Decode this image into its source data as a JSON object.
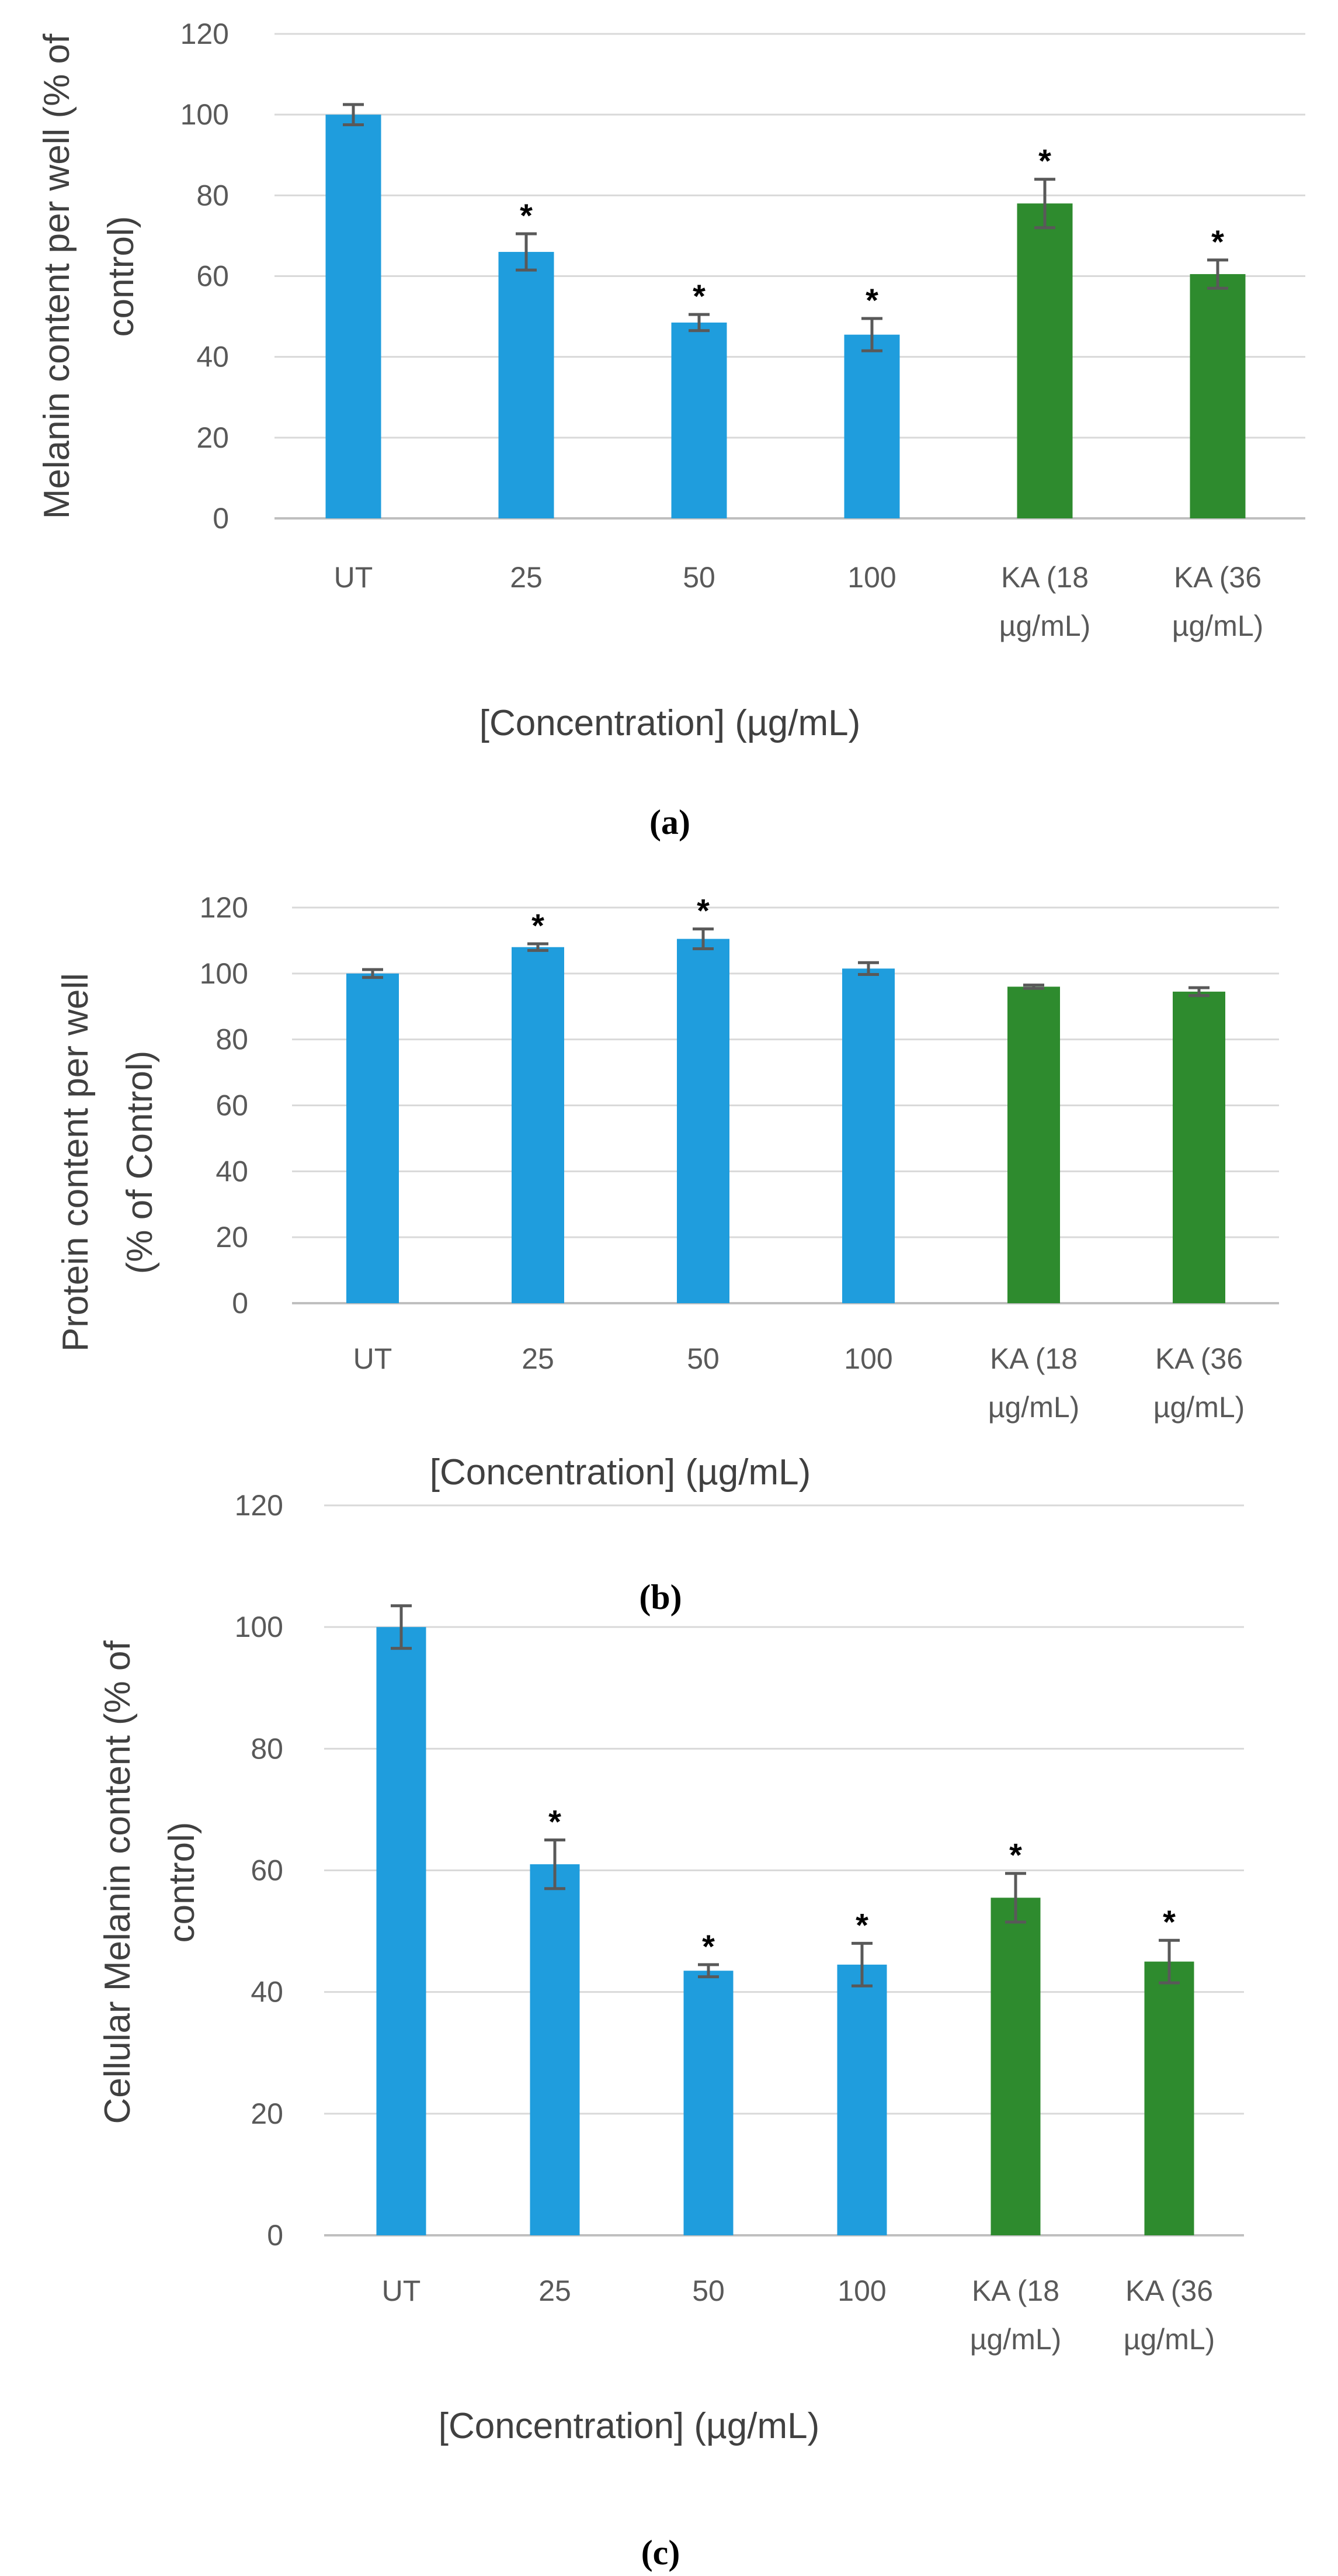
{
  "chart_data": [
    {
      "type": "bar",
      "panel": "(a)",
      "caption": "(a)",
      "title": "",
      "ylabel_lines": [
        "Melanin content per well (% of",
        "control)"
      ],
      "xlabel": "[Concentration]  (µg/mL)",
      "ylim": [
        0,
        120
      ],
      "yticks": [
        0,
        20,
        40,
        60,
        80,
        100,
        120
      ],
      "categories": [
        [
          "UT"
        ],
        [
          "25"
        ],
        [
          "50"
        ],
        [
          "100"
        ],
        [
          "KA (18",
          "µg/mL)"
        ],
        [
          "KA (36",
          "µg/mL)"
        ]
      ],
      "values": [
        100,
        66,
        48.5,
        45.5,
        78,
        60.5
      ],
      "errors": [
        2.5,
        4.5,
        2,
        4,
        6,
        3.5
      ],
      "significance": [
        "",
        "*",
        "*",
        "*",
        "*",
        "*"
      ],
      "series_colors": [
        "#1f9ddd",
        "#1f9ddd",
        "#1f9ddd",
        "#1f9ddd",
        "#2e8b2e",
        "#2e8b2e"
      ]
    },
    {
      "type": "bar",
      "panel": "(b)",
      "caption": "(b)",
      "title": "",
      "ylabel_lines": [
        "Protein content  per well",
        "(% of Control)"
      ],
      "xlabel": "[Concentration]  (µg/mL)",
      "ylim": [
        0,
        120
      ],
      "yticks": [
        0,
        20,
        40,
        60,
        80,
        100,
        120
      ],
      "categories": [
        [
          "UT"
        ],
        [
          "25"
        ],
        [
          "50"
        ],
        [
          "100"
        ],
        [
          "KA (18",
          "µg/mL)"
        ],
        [
          "KA (36",
          "µg/mL)"
        ]
      ],
      "values": [
        100,
        108,
        110.5,
        101.5,
        96,
        94.5
      ],
      "errors": [
        1.2,
        1,
        3,
        1.8,
        0.5,
        1.2
      ],
      "significance": [
        "",
        "*",
        "*",
        "",
        "",
        ""
      ],
      "series_colors": [
        "#1f9ddd",
        "#1f9ddd",
        "#1f9ddd",
        "#1f9ddd",
        "#2e8b2e",
        "#2e8b2e"
      ]
    },
    {
      "type": "bar",
      "panel": "(c)",
      "caption": "(c)",
      "title": "",
      "ylabel_lines": [
        "Cellular Melanin content  (% of",
        "control)"
      ],
      "xlabel": "[Concentration]  (µg/mL)",
      "ylim": [
        0,
        120
      ],
      "yticks": [
        0,
        20,
        40,
        60,
        80,
        100,
        120
      ],
      "categories": [
        [
          "UT"
        ],
        [
          "25"
        ],
        [
          "50"
        ],
        [
          "100"
        ],
        [
          "KA (18",
          "µg/mL)"
        ],
        [
          "KA (36",
          "µg/mL)"
        ]
      ],
      "values": [
        100,
        61,
        43.5,
        44.5,
        55.5,
        45
      ],
      "errors": [
        3.5,
        4,
        1,
        3.5,
        4,
        3.5
      ],
      "significance": [
        "",
        "*",
        "*",
        "*",
        "*",
        "*"
      ],
      "series_colors": [
        "#1f9ddd",
        "#1f9ddd",
        "#1f9ddd",
        "#1f9ddd",
        "#2e8b2e",
        "#2e8b2e"
      ]
    }
  ]
}
